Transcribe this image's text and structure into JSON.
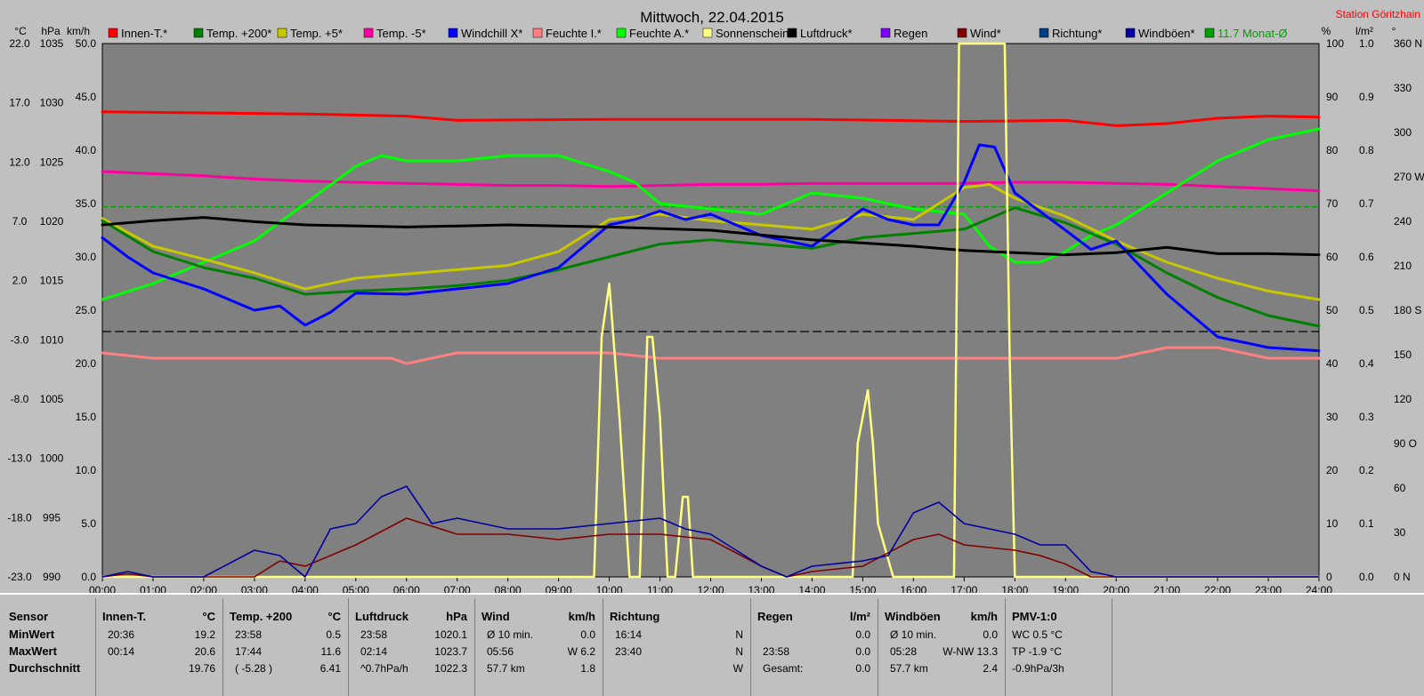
{
  "chart_data": {
    "type": "line",
    "title": "Mittwoch, 22.04.2015",
    "station": "Station Göritzhain",
    "axis_units": {
      "temp": "°C",
      "pressure": "hPa",
      "speed": "km/h",
      "percent": "%",
      "rain": "l/m²",
      "direction": "°"
    },
    "axes": {
      "temp": {
        "ticks": [
          "22.0",
          "17.0",
          "12.0",
          "7.0",
          "2.0",
          "-3.0",
          "-8.0",
          "-13.0",
          "-18.0",
          "-23.0"
        ],
        "range": [
          -23,
          27
        ]
      },
      "pressure": {
        "ticks": [
          "1035",
          "1030",
          "1025",
          "1020",
          "1015",
          "1010",
          "1005",
          "1000",
          "995",
          "990"
        ],
        "range": [
          990,
          1040
        ]
      },
      "speed": {
        "ticks": [
          "50.0",
          "45.0",
          "40.0",
          "35.0",
          "30.0",
          "25.0",
          "20.0",
          "15.0",
          "10.0",
          "5.0",
          "0.0"
        ],
        "range": [
          0,
          50
        ]
      },
      "percent": {
        "ticks": [
          "100",
          "90",
          "80",
          "70",
          "60",
          "50",
          "40",
          "30",
          "20",
          "10",
          "0"
        ],
        "range": [
          0,
          100
        ]
      },
      "rain": {
        "ticks": [
          "1.0",
          "0.9",
          "0.8",
          "0.7",
          "0.6",
          "0.5",
          "0.4",
          "0.3",
          "0.2",
          "0.1",
          "0.0"
        ],
        "range": [
          0,
          1
        ]
      },
      "direction": {
        "ticks": [
          "360 N",
          "330",
          "300",
          "270 W",
          "240",
          "210",
          "180 S",
          "150",
          "120",
          "90 O",
          "60",
          "30",
          "0 N"
        ],
        "range": [
          0,
          360
        ]
      }
    },
    "x_ticks": [
      "00:00",
      "01:00",
      "02:00",
      "03:00",
      "04:00",
      "05:00",
      "06:00",
      "07:00",
      "08:00",
      "09:00",
      "10:00",
      "11:00",
      "12:00",
      "13:00",
      "14:00",
      "15:00",
      "16:00",
      "17:00",
      "18:00",
      "19:00",
      "20:00",
      "21:00",
      "22:00",
      "23:00",
      "24:00"
    ],
    "x_range": [
      0,
      24
    ],
    "grid": false,
    "legend_items": [
      {
        "label": "Innen-T.*",
        "color": "#ff0000"
      },
      {
        "label": "Temp. +200*",
        "color": "#008000"
      },
      {
        "label": "Temp. +5*",
        "color": "#c8c800"
      },
      {
        "label": "Temp. -5*",
        "color": "#ff00a0"
      },
      {
        "label": "Windchill X*",
        "color": "#0000ff"
      },
      {
        "label": "Feuchte I.*",
        "color": "#ff8080"
      },
      {
        "label": "Feuchte A.*",
        "color": "#00ff00"
      },
      {
        "label": "Sonnenschein",
        "color": "#ffff80"
      },
      {
        "label": "Luftdruck*",
        "color": "#000000"
      },
      {
        "label": "Regen",
        "color": "#8000ff"
      },
      {
        "label": "Wind*",
        "color": "#800000"
      },
      {
        "label": "Richtung*",
        "color": "#004080"
      },
      {
        "label": "Windböen*",
        "color": "#0000a0"
      },
      {
        "label": "11.7 Monat-Ø",
        "color": "#00a000"
      }
    ],
    "series": [
      {
        "name": "Innen-T.*",
        "axis": "temp",
        "color": "#ff0000",
        "x": [
          0,
          2,
          4,
          6,
          7,
          10,
          14,
          17,
          19,
          20,
          21,
          22,
          23,
          24
        ],
        "values": [
          20.6,
          20.5,
          20.4,
          20.2,
          19.8,
          19.9,
          19.9,
          19.7,
          19.8,
          19.3,
          19.5,
          20.0,
          20.2,
          20.1
        ]
      },
      {
        "name": "Temp. -5*",
        "axis": "temp",
        "color": "#ff00a0",
        "x": [
          0,
          1,
          2,
          3,
          4,
          5,
          6,
          7,
          8,
          9,
          10,
          11,
          12,
          13,
          14,
          15,
          16,
          17,
          18,
          19,
          20,
          21,
          22,
          23,
          24
        ],
        "values": [
          15.0,
          14.8,
          14.6,
          14.3,
          14.1,
          14.0,
          13.9,
          13.8,
          13.7,
          13.7,
          13.6,
          13.7,
          13.8,
          13.8,
          13.9,
          13.9,
          13.9,
          13.9,
          14.0,
          14.0,
          13.9,
          13.8,
          13.6,
          13.4,
          13.2
        ]
      },
      {
        "name": "Feuchte A.*",
        "axis": "percent",
        "color": "#00ff00",
        "x": [
          0,
          1,
          2,
          3,
          4,
          5,
          5.5,
          6,
          7,
          8,
          9,
          10,
          10.5,
          11,
          12,
          13,
          14,
          15,
          16,
          17,
          17.5,
          18,
          18.5,
          19,
          19.5,
          20,
          21,
          22,
          23,
          24
        ],
        "values": [
          52,
          55,
          59,
          63,
          70,
          77,
          79,
          78,
          78,
          79,
          79,
          76,
          74,
          70,
          69,
          68,
          72,
          71,
          69,
          68,
          62,
          59,
          59,
          61,
          64,
          66,
          72,
          78,
          82,
          84
        ]
      },
      {
        "name": "Temp. +5*",
        "axis": "temp",
        "color": "#c8c800",
        "x": [
          0,
          1,
          2,
          3,
          4,
          5,
          6,
          7,
          8,
          9,
          10,
          11,
          12,
          13,
          14,
          15,
          16,
          17,
          17.5,
          18,
          19,
          20,
          21,
          22,
          23,
          24
        ],
        "values": [
          10.6,
          8.0,
          6.8,
          5.5,
          4.0,
          5.0,
          5.4,
          5.8,
          6.2,
          7.5,
          10.5,
          11.0,
          10.4,
          10.0,
          9.6,
          11.0,
          10.5,
          13.5,
          13.8,
          12.5,
          10.8,
          8.5,
          6.5,
          5.0,
          3.8,
          3.0
        ]
      },
      {
        "name": "Temp. +200*",
        "axis": "temp",
        "color": "#008000",
        "x": [
          0,
          1,
          2,
          3,
          4,
          5,
          6,
          7,
          8,
          9,
          10,
          11,
          12,
          13,
          14,
          15,
          16,
          17,
          18,
          19,
          20,
          21,
          22,
          23,
          24
        ],
        "values": [
          10.4,
          7.5,
          6.0,
          5.0,
          3.5,
          3.8,
          4.0,
          4.3,
          4.8,
          5.8,
          7.0,
          8.2,
          8.6,
          8.2,
          7.8,
          8.8,
          9.2,
          9.6,
          11.6,
          10.2,
          8.2,
          5.5,
          3.2,
          1.5,
          0.5
        ]
      },
      {
        "name": "Windchill X*",
        "axis": "temp",
        "color": "#0000ff",
        "x": [
          0,
          0.5,
          1,
          2,
          3,
          3.5,
          4,
          4.5,
          5,
          6,
          7,
          8,
          9,
          10,
          10.5,
          11,
          11.5,
          12,
          13,
          14,
          15,
          15.5,
          16,
          16.5,
          17,
          17.3,
          17.6,
          18,
          19,
          19.5,
          20,
          21,
          22,
          23,
          24
        ],
        "values": [
          8.8,
          7.0,
          5.5,
          4.0,
          2.0,
          2.4,
          0.6,
          1.8,
          3.6,
          3.5,
          4.0,
          4.5,
          6.0,
          10.0,
          10.5,
          11.3,
          10.5,
          11.0,
          9.0,
          8.0,
          11.5,
          10.5,
          10.0,
          10.0,
          14.0,
          17.5,
          17.3,
          13.0,
          9.5,
          7.7,
          8.5,
          3.5,
          -0.5,
          -1.5,
          -1.8
        ]
      },
      {
        "name": "Luftdruck*",
        "axis": "pressure",
        "color": "#000000",
        "x": [
          0,
          1,
          2,
          3,
          4,
          6,
          8,
          10,
          12,
          14,
          16,
          17,
          18,
          19,
          20,
          21,
          22,
          23,
          24
        ],
        "values": [
          1023.0,
          1023.4,
          1023.7,
          1023.3,
          1023.0,
          1022.8,
          1023.0,
          1022.8,
          1022.5,
          1021.6,
          1021.0,
          1020.6,
          1020.4,
          1020.2,
          1020.4,
          1020.9,
          1020.3,
          1020.3,
          1020.2
        ]
      },
      {
        "name": "Feuchte I.*",
        "axis": "percent",
        "color": "#ff8080",
        "x": [
          0,
          1,
          2,
          4,
          5,
          5.7,
          6,
          6.5,
          7,
          8,
          9,
          10,
          11,
          12,
          13,
          14,
          15,
          16,
          17,
          18,
          19,
          20,
          20.5,
          21,
          22,
          22.5,
          23,
          24
        ],
        "values": [
          42,
          41,
          41,
          41,
          41,
          41,
          40,
          41,
          42,
          42,
          42,
          42,
          41,
          41,
          41,
          41,
          41,
          41,
          41,
          41,
          41,
          41,
          42,
          43,
          43,
          42,
          41,
          41
        ]
      },
      {
        "name": "Sonnenschein",
        "axis": "percent",
        "color": "#ffff80",
        "x": [
          0,
          9.7,
          9.85,
          10.0,
          10.2,
          10.4,
          10.6,
          10.75,
          10.85,
          11.0,
          11.15,
          11.3,
          11.45,
          11.55,
          11.65,
          11.75,
          14.8,
          14.9,
          15.0,
          15.1,
          15.2,
          15.3,
          15.45,
          15.6,
          16.8,
          16.9,
          17.0,
          17.8,
          17.9,
          18.0,
          24
        ],
        "values": [
          0,
          0,
          45,
          55,
          30,
          0,
          0,
          45,
          45,
          30,
          0,
          0,
          15,
          15,
          0,
          0,
          0,
          25,
          30,
          35,
          25,
          10,
          5,
          0,
          0,
          100,
          100,
          100,
          40,
          0,
          0
        ]
      },
      {
        "name": "Wind*",
        "axis": "speed",
        "color": "#800000",
        "x": [
          0,
          0.5,
          1,
          2,
          3,
          3.5,
          4,
          5,
          6,
          7,
          8,
          9,
          10,
          11,
          12,
          13,
          13.5,
          14,
          15,
          16,
          16.5,
          17,
          18,
          18.5,
          19,
          19.5,
          20,
          24
        ],
        "values": [
          0,
          0.3,
          0,
          0,
          0,
          1.5,
          1.0,
          3.0,
          5.5,
          4.0,
          4.0,
          3.5,
          4.0,
          4.0,
          3.5,
          1.0,
          0,
          0.5,
          1.0,
          3.5,
          4.0,
          3.0,
          2.5,
          2.0,
          1.2,
          0,
          0,
          0
        ]
      },
      {
        "name": "Windböen*",
        "axis": "speed",
        "color": "#0000a0",
        "x": [
          0,
          0.5,
          1,
          2,
          3,
          3.5,
          4,
          4.5,
          5,
          5.5,
          6,
          6.5,
          7,
          8,
          9,
          10,
          11,
          11.5,
          12,
          13,
          13.5,
          14,
          15,
          15.5,
          16,
          16.5,
          17,
          18,
          18.5,
          19,
          19.5,
          20,
          24
        ],
        "values": [
          0,
          0.5,
          0,
          0,
          2.5,
          2.0,
          0,
          4.5,
          5.0,
          7.5,
          8.5,
          5.0,
          5.5,
          4.5,
          4.5,
          5.0,
          5.5,
          4.5,
          4.0,
          1.0,
          0,
          1.0,
          1.5,
          2.0,
          6.0,
          7.0,
          5.0,
          4.0,
          3.0,
          3.0,
          0.5,
          0,
          0
        ]
      }
    ],
    "reference_lines": [
      {
        "name": "11.7 Monat-Ø",
        "axis": "temp",
        "value": 11.7,
        "color": "#00a000",
        "style": "dashed"
      },
      {
        "axis": "temp",
        "value": 0,
        "color": "#000000",
        "style": "dashed"
      }
    ]
  },
  "stats": {
    "sensor": {
      "header": "Sensor",
      "rows": [
        "MinWert",
        "MaxWert",
        "Durchschnitt"
      ]
    },
    "innen": {
      "header": "Innen-T.",
      "unit": "°C",
      "rows": [
        [
          "20:36",
          "19.2"
        ],
        [
          "00:14",
          "20.6"
        ],
        [
          "",
          "19.76"
        ]
      ]
    },
    "temp200": {
      "header": "Temp. +200",
      "unit": "°C",
      "rows": [
        [
          "23:58",
          "0.5"
        ],
        [
          "17:44",
          "11.6"
        ],
        [
          "( -5.28 )",
          "6.41"
        ]
      ]
    },
    "luftdruck": {
      "header": "Luftdruck",
      "unit": "hPa",
      "rows": [
        [
          "23:58",
          "1020.1"
        ],
        [
          "02:14",
          "1023.7"
        ],
        [
          "^0.7hPa/h",
          "1022.3"
        ]
      ]
    },
    "wind": {
      "header": "Wind",
      "unit": "km/h",
      "rows": [
        [
          "Ø 10 min.",
          "0.0"
        ],
        [
          "05:56",
          "W 6.2"
        ],
        [
          "57.7 km",
          "1.8"
        ]
      ]
    },
    "richtung": {
      "header": "Richtung",
      "rows": [
        [
          "16:14",
          "N"
        ],
        [
          "23:40",
          "N"
        ],
        [
          "",
          "W"
        ]
      ]
    },
    "regen": {
      "header": "Regen",
      "unit": "l/m²",
      "rows": [
        [
          "",
          "0.0"
        ],
        [
          "23:58",
          "0.0"
        ],
        [
          "Gesamt:",
          "0.0"
        ]
      ]
    },
    "windboeen": {
      "header": "Windböen",
      "unit": "km/h",
      "rows": [
        [
          "Ø 10 min.",
          "0.0"
        ],
        [
          "05:28",
          "W-NW 13.3"
        ],
        [
          "57.7 km",
          "2.4"
        ]
      ]
    },
    "pmv": {
      "header": "PMV-1:0",
      "rows": [
        "WC 0.5 °C",
        "TP -1.9 °C",
        "-0.9hPa/3h"
      ]
    }
  }
}
